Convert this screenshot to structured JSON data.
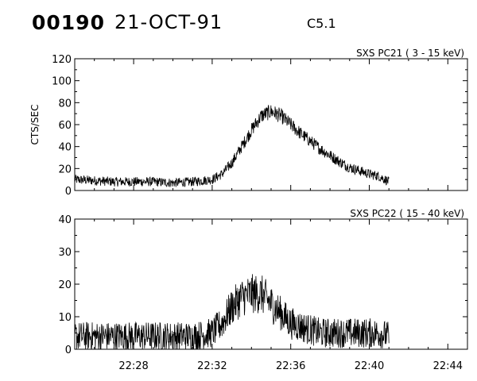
{
  "header": {
    "event_id": "00190",
    "date": "21-OCT-91",
    "flare_class": "C5.1"
  },
  "chart_data": [
    {
      "type": "line",
      "title": "SXS PC21  (  3 - 15 keV)",
      "xlabel": "",
      "ylabel": "CTS/SEC",
      "xlim": [
        "22:25",
        "22:45"
      ],
      "ylim": [
        0,
        120
      ],
      "yticks": [
        0,
        20,
        40,
        60,
        80,
        100,
        120
      ],
      "series": [
        {
          "x": [
            "22:25",
            "22:26",
            "22:27",
            "22:28",
            "22:29",
            "22:30",
            "22:31",
            "22:32",
            "22:32:30",
            "22:33",
            "22:33:30",
            "22:34",
            "22:34:30",
            "22:35",
            "22:35:30",
            "22:36",
            "22:36:30",
            "22:37",
            "22:37:30",
            "22:38",
            "22:38:30",
            "22:39",
            "22:39:30",
            "22:40",
            "22:40:30",
            "22:41"
          ],
          "values": [
            10,
            9,
            8,
            8,
            8,
            7,
            8,
            10,
            15,
            25,
            40,
            55,
            68,
            72,
            68,
            60,
            52,
            45,
            38,
            32,
            26,
            21,
            18,
            15,
            13,
            8
          ],
          "noise": 4
        }
      ]
    },
    {
      "type": "line",
      "title": "SXS PC22  ( 15 - 40 keV)",
      "xlabel": "",
      "ylabel": "",
      "xlim": [
        "22:25",
        "22:45"
      ],
      "ylim": [
        0,
        40
      ],
      "yticks": [
        0,
        10,
        20,
        30,
        40
      ],
      "xticks": [
        "22:28",
        "22:32",
        "22:36",
        "22:40",
        "22:44"
      ],
      "series": [
        {
          "x": [
            "22:25",
            "22:26",
            "22:27",
            "22:28",
            "22:29",
            "22:30",
            "22:31",
            "22:32",
            "22:32:30",
            "22:33",
            "22:33:30",
            "22:34",
            "22:34:30",
            "22:35",
            "22:35:30",
            "22:36",
            "22:36:30",
            "22:37",
            "22:37:30",
            "22:38",
            "22:38:30",
            "22:39",
            "22:39:30",
            "22:40",
            "22:40:30",
            "22:41"
          ],
          "values": [
            4,
            4,
            4,
            4,
            4,
            4,
            4,
            5,
            8,
            13,
            16,
            17,
            17,
            14,
            11,
            8,
            7,
            6,
            5,
            5,
            5,
            5,
            5,
            5,
            5,
            4
          ],
          "noise": 4
        }
      ]
    }
  ]
}
